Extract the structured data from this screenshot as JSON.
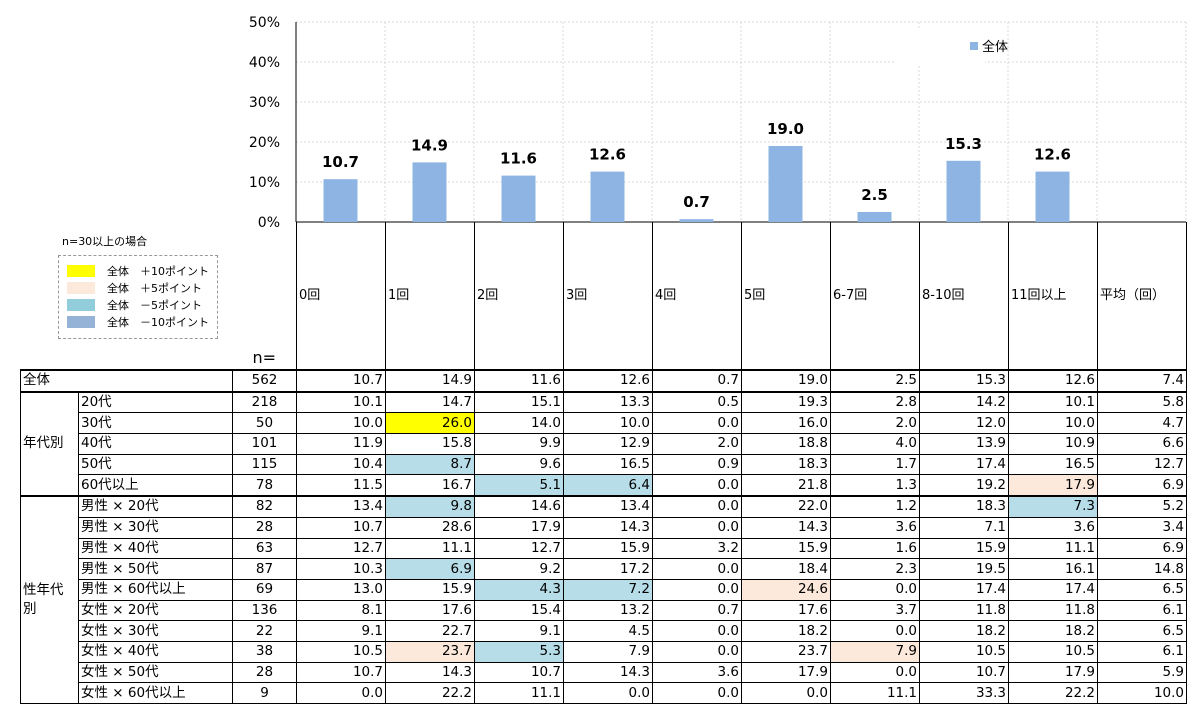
{
  "chart_data": {
    "type": "bar",
    "categories": [
      "0回",
      "1回",
      "2回",
      "3回",
      "4回",
      "5回",
      "6-7回",
      "8-10回",
      "11回以上"
    ],
    "series": [
      {
        "name": "全体",
        "values": [
          10.7,
          14.9,
          11.6,
          12.6,
          0.7,
          19.0,
          2.5,
          15.3,
          12.6
        ],
        "color": "#8db4e2"
      }
    ],
    "data_labels": [
      "10.7",
      "14.9",
      "11.6",
      "12.6",
      "0.7",
      "19.0",
      "2.5",
      "15.3",
      "12.6"
    ],
    "ylim": [
      0,
      50
    ],
    "yticks": [
      "0%",
      "10%",
      "20%",
      "30%",
      "40%",
      "50%"
    ],
    "grid": true,
    "legend": "top-right"
  },
  "note": "n=30以上の場合",
  "highlight_legend": [
    {
      "label": "全体　＋10ポイント",
      "color": "#ffff00"
    },
    {
      "label": "全体　＋5ポイント",
      "color": "#fce9dc"
    },
    {
      "label": "全体　－5ポイント",
      "color": "#92cddc"
    },
    {
      "label": "全体　－10ポイント",
      "color": "#95b3d7"
    }
  ],
  "table": {
    "n_label": "n=",
    "columns": [
      "0回",
      "1回",
      "2回",
      "3回",
      "4回",
      "5回",
      "6-7回",
      "8-10回",
      "11回以上",
      "平均（回）"
    ],
    "groups": [
      "全体",
      "年代別",
      "性年代別"
    ],
    "rows": [
      {
        "group": 0,
        "label": "",
        "n": "562",
        "values": [
          "10.7",
          "14.9",
          "11.6",
          "12.6",
          "0.7",
          "19.0",
          "2.5",
          "15.3",
          "12.6",
          "7.4"
        ]
      },
      {
        "group": 1,
        "label": "20代",
        "n": "218",
        "values": [
          "10.1",
          "14.7",
          "15.1",
          "13.3",
          "0.5",
          "19.3",
          "2.8",
          "14.2",
          "10.1",
          "5.8"
        ]
      },
      {
        "group": 1,
        "label": "30代",
        "n": "50",
        "values": [
          "10.0",
          "26.0",
          "14.0",
          "10.0",
          "0.0",
          "16.0",
          "2.0",
          "12.0",
          "10.0",
          "4.7"
        ]
      },
      {
        "group": 1,
        "label": "40代",
        "n": "101",
        "values": [
          "11.9",
          "15.8",
          "9.9",
          "12.9",
          "2.0",
          "18.8",
          "4.0",
          "13.9",
          "10.9",
          "6.6"
        ]
      },
      {
        "group": 1,
        "label": "50代",
        "n": "115",
        "values": [
          "10.4",
          "8.7",
          "9.6",
          "16.5",
          "0.9",
          "18.3",
          "1.7",
          "17.4",
          "16.5",
          "12.7"
        ]
      },
      {
        "group": 1,
        "label": "60代以上",
        "n": "78",
        "values": [
          "11.5",
          "16.7",
          "5.1",
          "6.4",
          "0.0",
          "21.8",
          "1.3",
          "19.2",
          "17.9",
          "6.9"
        ]
      },
      {
        "group": 2,
        "label": "男性 × 20代",
        "n": "82",
        "values": [
          "13.4",
          "9.8",
          "14.6",
          "13.4",
          "0.0",
          "22.0",
          "1.2",
          "18.3",
          "7.3",
          "5.2"
        ]
      },
      {
        "group": 2,
        "label": "男性 × 30代",
        "n": "28",
        "values": [
          "10.7",
          "28.6",
          "17.9",
          "14.3",
          "0.0",
          "14.3",
          "3.6",
          "7.1",
          "3.6",
          "3.4"
        ]
      },
      {
        "group": 2,
        "label": "男性 × 40代",
        "n": "63",
        "values": [
          "12.7",
          "11.1",
          "12.7",
          "15.9",
          "3.2",
          "15.9",
          "1.6",
          "15.9",
          "11.1",
          "6.9"
        ]
      },
      {
        "group": 2,
        "label": "男性 × 50代",
        "n": "87",
        "values": [
          "10.3",
          "6.9",
          "9.2",
          "17.2",
          "0.0",
          "18.4",
          "2.3",
          "19.5",
          "16.1",
          "14.8"
        ]
      },
      {
        "group": 2,
        "label": "男性 × 60代以上",
        "n": "69",
        "values": [
          "13.0",
          "15.9",
          "4.3",
          "7.2",
          "0.0",
          "24.6",
          "0.0",
          "17.4",
          "17.4",
          "6.5"
        ]
      },
      {
        "group": 2,
        "label": "女性 × 20代",
        "n": "136",
        "values": [
          "8.1",
          "17.6",
          "15.4",
          "13.2",
          "0.7",
          "17.6",
          "3.7",
          "11.8",
          "11.8",
          "6.1"
        ]
      },
      {
        "group": 2,
        "label": "女性 × 30代",
        "n": "22",
        "values": [
          "9.1",
          "22.7",
          "9.1",
          "4.5",
          "0.0",
          "18.2",
          "0.0",
          "18.2",
          "18.2",
          "6.5"
        ]
      },
      {
        "group": 2,
        "label": "女性 × 40代",
        "n": "38",
        "values": [
          "10.5",
          "23.7",
          "5.3",
          "7.9",
          "0.0",
          "23.7",
          "7.9",
          "10.5",
          "10.5",
          "6.1"
        ]
      },
      {
        "group": 2,
        "label": "女性 × 50代",
        "n": "28",
        "values": [
          "10.7",
          "14.3",
          "10.7",
          "14.3",
          "3.6",
          "17.9",
          "0.0",
          "10.7",
          "17.9",
          "5.9"
        ]
      },
      {
        "group": 2,
        "label": "女性 × 60代以上",
        "n": "9",
        "values": [
          "0.0",
          "22.2",
          "11.1",
          "0.0",
          "0.0",
          "0.0",
          "11.1",
          "33.3",
          "22.2",
          "10.0"
        ]
      }
    ],
    "highlights": [
      {
        "row": 2,
        "col": 1,
        "level": "p10"
      },
      {
        "row": 4,
        "col": 1,
        "level": "m5"
      },
      {
        "row": 5,
        "col": 2,
        "level": "m5"
      },
      {
        "row": 5,
        "col": 3,
        "level": "m5"
      },
      {
        "row": 5,
        "col": 8,
        "level": "p5"
      },
      {
        "row": 6,
        "col": 1,
        "level": "m5"
      },
      {
        "row": 6,
        "col": 8,
        "level": "m5"
      },
      {
        "row": 9,
        "col": 1,
        "level": "m5"
      },
      {
        "row": 10,
        "col": 2,
        "level": "m5"
      },
      {
        "row": 10,
        "col": 3,
        "level": "m5"
      },
      {
        "row": 10,
        "col": 5,
        "level": "p5"
      },
      {
        "row": 13,
        "col": 1,
        "level": "p5"
      },
      {
        "row": 13,
        "col": 2,
        "level": "m5"
      },
      {
        "row": 13,
        "col": 6,
        "level": "p5"
      }
    ]
  }
}
